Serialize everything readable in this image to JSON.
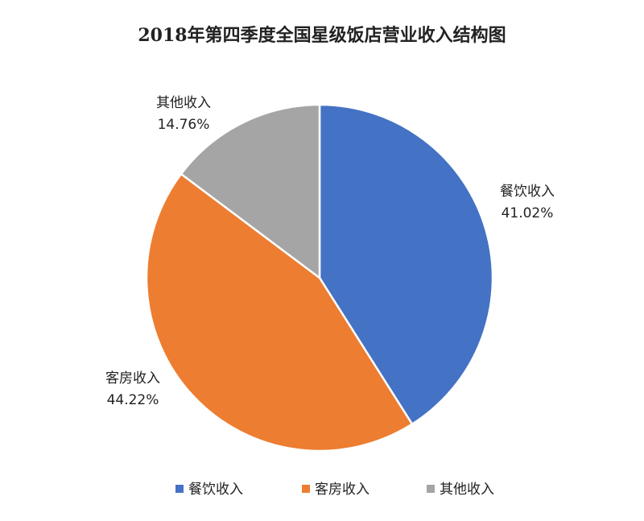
{
  "chart_data": {
    "type": "pie",
    "title": "2018年第四季度全国星级饭店营业收入结构图",
    "categories": [
      "餐饮收入",
      "客房收入",
      "其他收入"
    ],
    "values": [
      41.02,
      44.22,
      14.76
    ],
    "value_labels": [
      "41.02%",
      "44.22%",
      "14.76%"
    ],
    "colors": [
      "#4472c4",
      "#ed7d31",
      "#a5a5a5"
    ],
    "legend": "bottom"
  }
}
